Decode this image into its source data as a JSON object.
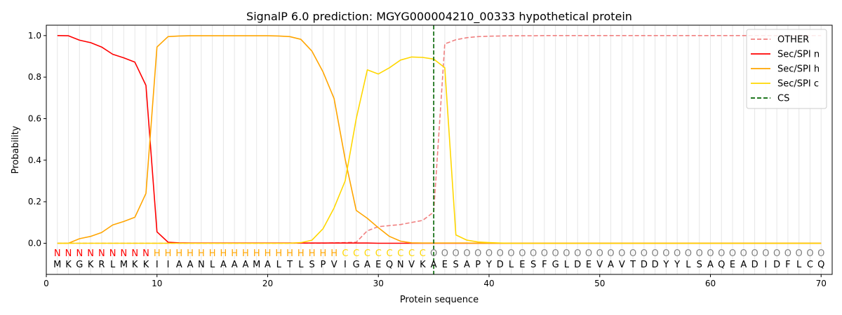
{
  "chart_data": {
    "type": "line",
    "title": "SignalP 6.0 prediction: MGYG000004210_00333 hypothetical protein",
    "xlabel": "Protein sequence",
    "ylabel": "Probability",
    "xlim": [
      0,
      71
    ],
    "ylim": [
      -0.15,
      1.05
    ],
    "x_ticks": [
      0,
      10,
      20,
      30,
      40,
      50,
      60,
      70
    ],
    "y_ticks": [
      0.0,
      0.2,
      0.4,
      0.6,
      0.8,
      1.0
    ],
    "y_tick_labels": [
      "0.0",
      "0.2",
      "0.4",
      "0.6",
      "0.8",
      "1.0"
    ],
    "grid": "vertical lines at each residue",
    "legend_placement": "top-right",
    "sequence": "MKGKRLMKKIIAANLAAAMALTLSPVIGAEQNVKAESAPYDLESFGLDEVAVTDDYYLSAQEADIDFLCQ",
    "labels": "NNNNNNNNNHHHHHHHHHHHHHHHHHCCCCCCCCOOOOOOOOOOOOOOOOOOOOOOOOOOOOOOOOOOOO",
    "label_colors": {
      "N": "#ff0000",
      "H": "#ffa500",
      "C": "#ffd700",
      "O": "#808080"
    },
    "cleavage_site": 35,
    "series": [
      {
        "name": "OTHER",
        "color": "#f08080",
        "style": "dashed",
        "values": [
          0,
          0,
          0,
          0,
          0,
          0,
          0,
          0,
          0,
          0,
          0,
          0,
          0,
          0,
          0,
          0,
          0,
          0,
          0,
          0,
          0,
          0,
          0,
          0,
          0,
          0.002,
          0.003,
          0.005,
          0.06,
          0.08,
          0.085,
          0.09,
          0.1,
          0.11,
          0.15,
          0.96,
          0.98,
          0.99,
          0.995,
          0.997,
          0.998,
          0.999,
          0.999,
          0.999,
          1,
          1,
          1,
          1,
          1,
          1,
          1,
          1,
          1,
          1,
          1,
          1,
          1,
          1,
          1,
          1,
          1,
          1,
          1,
          1,
          1,
          1,
          1,
          1,
          1,
          1
        ]
      },
      {
        "name": "Sec/SPI n",
        "color": "#ff0000",
        "style": "solid",
        "values": [
          1.0,
          0.999,
          0.978,
          0.966,
          0.945,
          0.91,
          0.893,
          0.872,
          0.76,
          0.055,
          0.005,
          0.002,
          0.001,
          0.001,
          0.001,
          0.001,
          0.001,
          0.001,
          0.001,
          0.001,
          0.001,
          0.001,
          0.001,
          0.001,
          0.001,
          0.001,
          0.001,
          0.001,
          0.001,
          0,
          0,
          0,
          0,
          0,
          0,
          0,
          0,
          0,
          0,
          0,
          0,
          0,
          0,
          0,
          0,
          0,
          0,
          0,
          0,
          0,
          0,
          0,
          0,
          0,
          0,
          0,
          0,
          0,
          0,
          0,
          0,
          0,
          0,
          0,
          0,
          0,
          0,
          0,
          0,
          0
        ]
      },
      {
        "name": "Sec/SPI h",
        "color": "#ffa500",
        "style": "solid",
        "values": [
          0,
          0,
          0.022,
          0.033,
          0.052,
          0.088,
          0.105,
          0.125,
          0.24,
          0.945,
          0.995,
          0.998,
          0.999,
          0.999,
          0.999,
          0.999,
          0.999,
          0.999,
          0.999,
          0.999,
          0.998,
          0.995,
          0.982,
          0.925,
          0.825,
          0.697,
          0.405,
          0.158,
          0.12,
          0.075,
          0.033,
          0.01,
          0.002,
          0.001,
          0.001,
          0.001,
          0.001,
          0.001,
          0,
          0,
          0,
          0,
          0,
          0,
          0,
          0,
          0,
          0,
          0,
          0,
          0,
          0,
          0,
          0,
          0,
          0,
          0,
          0,
          0,
          0,
          0,
          0,
          0,
          0,
          0,
          0,
          0,
          0,
          0,
          0
        ]
      },
      {
        "name": "Sec/SPI c",
        "color": "#ffd700",
        "style": "solid",
        "values": [
          0,
          0,
          0,
          0,
          0,
          0,
          0,
          0,
          0,
          0,
          0,
          0,
          0,
          0,
          0,
          0,
          0,
          0,
          0,
          0,
          0,
          0,
          0.003,
          0.015,
          0.07,
          0.17,
          0.3,
          0.6,
          0.835,
          0.815,
          0.845,
          0.882,
          0.897,
          0.895,
          0.887,
          0.845,
          0.04,
          0.015,
          0.006,
          0.003,
          0.001,
          0,
          0,
          0,
          0,
          0,
          0,
          0,
          0,
          0,
          0,
          0,
          0,
          0,
          0,
          0,
          0,
          0,
          0,
          0,
          0,
          0,
          0,
          0,
          0,
          0,
          0,
          0,
          0,
          0
        ]
      }
    ],
    "cs_legend": {
      "name": "CS",
      "color": "#006400",
      "style": "dashed"
    }
  }
}
